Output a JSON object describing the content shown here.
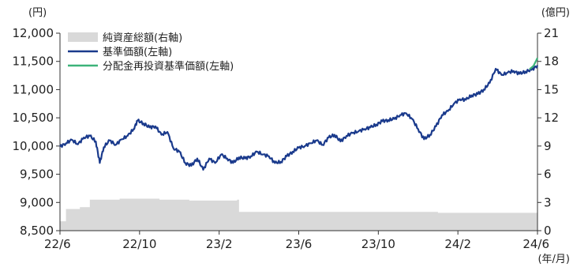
{
  "chart_data": {
    "type": "line",
    "left_axis": {
      "unit": "(円)",
      "ylim": [
        8500,
        12000
      ],
      "ticks": [
        "12,000",
        "11,500",
        "11,000",
        "10,500",
        "10,000",
        "9,500",
        "9,000",
        "8,500"
      ]
    },
    "right_axis": {
      "unit": "(億円)",
      "ylim": [
        0,
        21
      ],
      "ticks": [
        "21",
        "18",
        "15",
        "12",
        "9",
        "6",
        "3",
        "0"
      ]
    },
    "x_axis": {
      "unit": "(年/月)",
      "ticks": [
        "22/6",
        "22/10",
        "23/2",
        "23/6",
        "23/10",
        "24/2",
        "24/6"
      ],
      "months": [
        0,
        4,
        8,
        12,
        16,
        20,
        24
      ]
    },
    "legend": [
      "純資産総額(右軸)",
      "基準価額(左軸)",
      "分配金再投資基準価額(左軸)"
    ],
    "colors": {
      "nav": "#1a3a8c",
      "reinvest": "#3db37a",
      "assets": "#d9d9d9"
    },
    "series": [
      {
        "name": "基準価額(左軸)",
        "axis": "left",
        "points": [
          [
            0,
            9990
          ],
          [
            0.3,
            10050
          ],
          [
            0.6,
            10110
          ],
          [
            0.9,
            10030
          ],
          [
            1.2,
            10150
          ],
          [
            1.5,
            10180
          ],
          [
            1.8,
            10080
          ],
          [
            2.0,
            9700
          ],
          [
            2.2,
            9980
          ],
          [
            2.5,
            10100
          ],
          [
            2.8,
            10020
          ],
          [
            3.1,
            10120
          ],
          [
            3.4,
            10180
          ],
          [
            3.7,
            10300
          ],
          [
            3.9,
            10450
          ],
          [
            4.2,
            10400
          ],
          [
            4.5,
            10330
          ],
          [
            4.8,
            10350
          ],
          [
            5.1,
            10200
          ],
          [
            5.4,
            10250
          ],
          [
            5.7,
            9960
          ],
          [
            6.0,
            9900
          ],
          [
            6.3,
            9700
          ],
          [
            6.6,
            9650
          ],
          [
            6.9,
            9780
          ],
          [
            7.2,
            9580
          ],
          [
            7.5,
            9780
          ],
          [
            7.8,
            9700
          ],
          [
            8.1,
            9850
          ],
          [
            8.4,
            9780
          ],
          [
            8.7,
            9700
          ],
          [
            9.0,
            9800
          ],
          [
            9.3,
            9780
          ],
          [
            9.6,
            9820
          ],
          [
            9.9,
            9900
          ],
          [
            10.2,
            9850
          ],
          [
            10.5,
            9820
          ],
          [
            10.8,
            9700
          ],
          [
            11.1,
            9720
          ],
          [
            11.4,
            9820
          ],
          [
            11.7,
            9900
          ],
          [
            12.0,
            9970
          ],
          [
            12.3,
            10000
          ],
          [
            12.6,
            10050
          ],
          [
            12.9,
            10100
          ],
          [
            13.2,
            10020
          ],
          [
            13.5,
            10150
          ],
          [
            13.8,
            10200
          ],
          [
            14.1,
            10080
          ],
          [
            14.4,
            10180
          ],
          [
            14.7,
            10230
          ],
          [
            15.0,
            10260
          ],
          [
            15.3,
            10300
          ],
          [
            15.6,
            10330
          ],
          [
            15.9,
            10380
          ],
          [
            16.2,
            10440
          ],
          [
            16.5,
            10460
          ],
          [
            16.8,
            10480
          ],
          [
            17.1,
            10550
          ],
          [
            17.4,
            10580
          ],
          [
            17.7,
            10480
          ],
          [
            18.0,
            10300
          ],
          [
            18.3,
            10120
          ],
          [
            18.6,
            10200
          ],
          [
            18.9,
            10350
          ],
          [
            19.2,
            10550
          ],
          [
            19.5,
            10620
          ],
          [
            19.8,
            10750
          ],
          [
            20.1,
            10830
          ],
          [
            20.4,
            10820
          ],
          [
            20.7,
            10900
          ],
          [
            21.0,
            10920
          ],
          [
            21.3,
            11000
          ],
          [
            21.6,
            11120
          ],
          [
            21.9,
            11370
          ],
          [
            22.2,
            11260
          ],
          [
            22.5,
            11300
          ],
          [
            22.8,
            11330
          ],
          [
            23.1,
            11280
          ],
          [
            23.4,
            11320
          ],
          [
            23.7,
            11350
          ],
          [
            24.0,
            11430
          ]
        ]
      },
      {
        "name": "分配金再投資基準価額(左軸)",
        "axis": "left",
        "points": [
          [
            23.6,
            11360
          ],
          [
            23.8,
            11420
          ],
          [
            24.0,
            11560
          ]
        ]
      },
      {
        "name": "純資産総額(右軸)",
        "axis": "right",
        "points": [
          [
            0,
            1.0
          ],
          [
            0.3,
            2.3
          ],
          [
            1.0,
            2.5
          ],
          [
            1.5,
            3.3
          ],
          [
            3.0,
            3.4
          ],
          [
            5.0,
            3.3
          ],
          [
            6.5,
            3.2
          ],
          [
            8.0,
            3.2
          ],
          [
            8.9,
            3.3
          ],
          [
            9.0,
            2.0
          ],
          [
            12.0,
            2.0
          ],
          [
            16.0,
            2.0
          ],
          [
            19.0,
            1.9
          ],
          [
            22.0,
            1.9
          ],
          [
            24.0,
            2.0
          ]
        ]
      }
    ]
  }
}
